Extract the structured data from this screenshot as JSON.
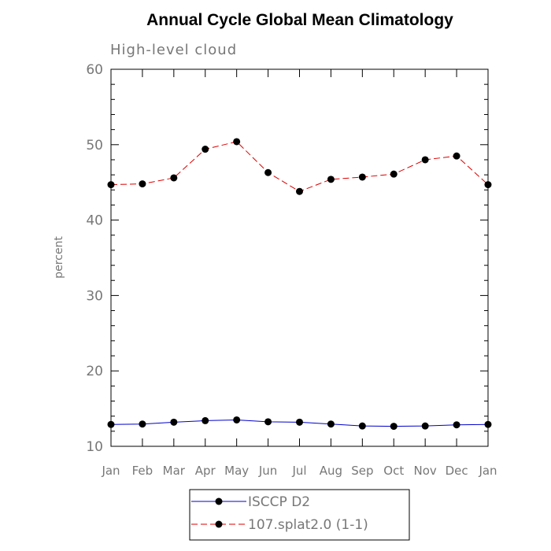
{
  "chart_data": {
    "type": "line",
    "title": "Annual Cycle Global Mean Climatology",
    "subtitle": "High-level cloud",
    "xlabel": "",
    "ylabel": "percent",
    "categories": [
      "Jan",
      "Feb",
      "Mar",
      "Apr",
      "May",
      "Jun",
      "Jul",
      "Aug",
      "Sep",
      "Oct",
      "Nov",
      "Dec",
      "Jan"
    ],
    "ylim": [
      10,
      60
    ],
    "yticks": [
      10,
      20,
      30,
      40,
      50,
      60
    ],
    "grid": false,
    "legend_position": "bottom",
    "series": [
      {
        "name": "ISCCP D2",
        "color": "#0000cc",
        "line_style": "solid",
        "marker": "filled-circle",
        "values": [
          12.9,
          12.95,
          13.2,
          13.4,
          13.5,
          13.25,
          13.2,
          12.95,
          12.7,
          12.65,
          12.7,
          12.85,
          12.9
        ]
      },
      {
        "name": "107.splat2.0 (1-1)",
        "color": "#dd0000",
        "line_style": "dashed",
        "marker": "filled-circle",
        "values": [
          44.7,
          44.8,
          45.6,
          49.4,
          50.4,
          46.3,
          43.8,
          45.4,
          45.7,
          46.1,
          48.0,
          48.5,
          44.7
        ]
      }
    ]
  }
}
